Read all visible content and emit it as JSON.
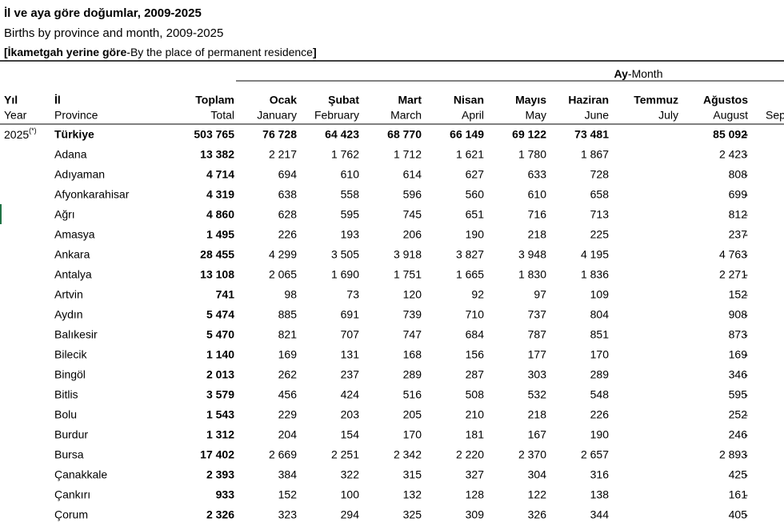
{
  "header": {
    "title": "İl ve aya göre doğumlar, 2009-2025",
    "subtitle": "Births by province and month, 2009-2025",
    "note": {
      "bold_start": "[İkametgah yerine göre",
      "normal": "-By the place of permanent residence",
      "bold_end": "]"
    }
  },
  "table": {
    "group_header": {
      "tr": "Ay",
      "en": "-Month"
    },
    "columns": [
      {
        "tr": "Yıl",
        "en": "Year"
      },
      {
        "tr": "İl",
        "en": "Province"
      },
      {
        "tr": "Toplam",
        "en": "Total"
      },
      {
        "tr": "Ocak",
        "en": "January"
      },
      {
        "tr": "Şubat",
        "en": "February"
      },
      {
        "tr": "Mart",
        "en": "March"
      },
      {
        "tr": "Nisan",
        "en": "April"
      },
      {
        "tr": "Mayıs",
        "en": "May"
      },
      {
        "tr": "Haziran",
        "en": "June"
      },
      {
        "tr": "Temmuz",
        "en": "July"
      },
      {
        "tr": "Ağustos",
        "en": "August"
      },
      {
        "en": "Sep"
      }
    ],
    "year": "2025",
    "year_note": "(*)",
    "rows": [
      [
        "Türkiye",
        "503 765",
        "76 728",
        "64 423",
        "68 770",
        "66 149",
        "69 122",
        "73 481",
        "85 092",
        "-"
      ],
      [
        "Adana",
        "13 382",
        "2 217",
        "1 762",
        "1 712",
        "1 621",
        "1 780",
        "1 867",
        "2 423",
        "-"
      ],
      [
        "Adıyaman",
        "4 714",
        "694",
        "610",
        "614",
        "627",
        "633",
        "728",
        "808",
        "-"
      ],
      [
        "Afyonkarahisar",
        "4 319",
        "638",
        "558",
        "596",
        "560",
        "610",
        "658",
        "699",
        "-"
      ],
      [
        "Ağrı",
        "4 860",
        "628",
        "595",
        "745",
        "651",
        "716",
        "713",
        "812",
        "-"
      ],
      [
        "Amasya",
        "1 495",
        "226",
        "193",
        "206",
        "190",
        "218",
        "225",
        "237",
        "-"
      ],
      [
        "Ankara",
        "28 455",
        "4 299",
        "3 505",
        "3 918",
        "3 827",
        "3 948",
        "4 195",
        "4 763",
        "-"
      ],
      [
        "Antalya",
        "13 108",
        "2 065",
        "1 690",
        "1 751",
        "1 665",
        "1 830",
        "1 836",
        "2 271",
        "-"
      ],
      [
        "Artvin",
        "741",
        "98",
        "73",
        "120",
        "92",
        "97",
        "109",
        "152",
        "-"
      ],
      [
        "Aydın",
        "5 474",
        "885",
        "691",
        "739",
        "710",
        "737",
        "804",
        "908",
        "-"
      ],
      [
        "Balıkesir",
        "5 470",
        "821",
        "707",
        "747",
        "684",
        "787",
        "851",
        "873",
        "-"
      ],
      [
        "Bilecik",
        "1 140",
        "169",
        "131",
        "168",
        "156",
        "177",
        "170",
        "169",
        "-"
      ],
      [
        "Bingöl",
        "2 013",
        "262",
        "237",
        "289",
        "287",
        "303",
        "289",
        "346",
        "-"
      ],
      [
        "Bitlis",
        "3 579",
        "456",
        "424",
        "516",
        "508",
        "532",
        "548",
        "595",
        "-"
      ],
      [
        "Bolu",
        "1 543",
        "229",
        "203",
        "205",
        "210",
        "218",
        "226",
        "252",
        "-"
      ],
      [
        "Burdur",
        "1 312",
        "204",
        "154",
        "170",
        "181",
        "167",
        "190",
        "246",
        "-"
      ],
      [
        "Bursa",
        "17 402",
        "2 669",
        "2 251",
        "2 342",
        "2 220",
        "2 370",
        "2 657",
        "2 893",
        "-"
      ],
      [
        "Çanakkale",
        "2 393",
        "384",
        "322",
        "315",
        "327",
        "304",
        "316",
        "425",
        "-"
      ],
      [
        "Çankırı",
        "933",
        "152",
        "100",
        "132",
        "128",
        "122",
        "138",
        "161",
        "-"
      ],
      [
        "Çorum",
        "2 326",
        "323",
        "294",
        "325",
        "309",
        "326",
        "344",
        "405",
        "-"
      ]
    ]
  }
}
